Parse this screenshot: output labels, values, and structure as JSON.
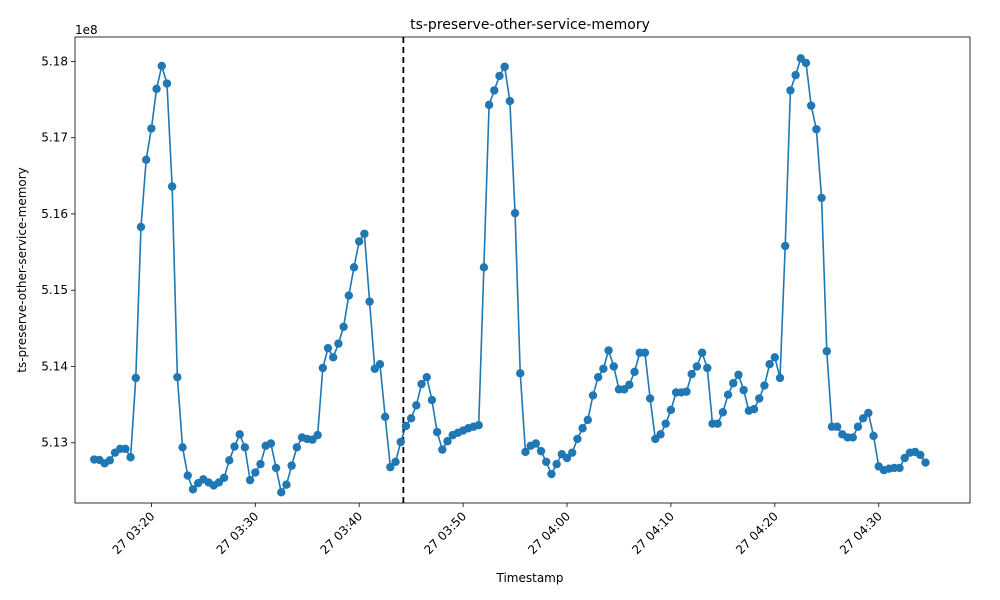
{
  "chart_data": {
    "type": "line",
    "title": "ts-preserve-other-service-memory",
    "xlabel": "Timestamp",
    "ylabel": "ts-preserve-other-service-memory",
    "y_offset_label": "1e8",
    "x_ticks": [
      "27 03:20",
      "27 03:30",
      "27 03:40",
      "27 03:50",
      "27 04:00",
      "27 04:10",
      "27 04:20",
      "27 04:30"
    ],
    "y_ticks": [
      "5.13",
      "5.14",
      "5.15",
      "5.16",
      "5.17",
      "5.18"
    ],
    "ylim": [
      5.1221,
      5.1832
    ],
    "xlim": [
      "03:12:39",
      "04:38:47"
    ],
    "vline": {
      "x": "03:44:15",
      "style": "dashed",
      "color": "#000000"
    },
    "line_color": "#1f77b4",
    "marker": "circle",
    "grid": false,
    "series": [
      {
        "x": [
          "03:14:30",
          "03:15:00",
          "03:15:30",
          "03:16:00",
          "03:16:30",
          "03:17:00",
          "03:17:30",
          "03:18:00",
          "03:18:30",
          "03:19:00",
          "03:19:30",
          "03:20:00",
          "03:20:30",
          "03:21:00",
          "03:21:30",
          "03:22:00",
          "03:22:30",
          "03:23:00",
          "03:23:30",
          "03:24:00",
          "03:24:30",
          "03:25:00",
          "03:25:30",
          "03:26:00",
          "03:26:30",
          "03:27:00",
          "03:27:30",
          "03:28:00",
          "03:28:30",
          "03:29:00",
          "03:29:30",
          "03:30:00",
          "03:30:30",
          "03:31:00",
          "03:31:30",
          "03:32:00",
          "03:32:30",
          "03:33:00",
          "03:33:30",
          "03:34:00",
          "03:34:30",
          "03:35:00",
          "03:35:30",
          "03:36:00",
          "03:36:30",
          "03:37:00",
          "03:37:30",
          "03:38:00",
          "03:38:30",
          "03:39:00",
          "03:39:30",
          "03:40:00",
          "03:40:30",
          "03:41:00",
          "03:41:30",
          "03:42:00",
          "03:42:30",
          "03:43:00",
          "03:43:30",
          "03:44:00",
          "03:44:30",
          "03:45:00",
          "03:45:30",
          "03:46:00",
          "03:46:30",
          "03:47:00",
          "03:47:30",
          "03:48:00",
          "03:48:30",
          "03:49:00",
          "03:49:30",
          "03:50:00",
          "03:50:30",
          "03:51:00",
          "03:51:30",
          "03:52:00",
          "03:52:30",
          "03:53:00",
          "03:53:30",
          "03:54:00",
          "03:54:30",
          "03:55:00",
          "03:55:30",
          "03:56:00",
          "03:56:30",
          "03:57:00",
          "03:57:30",
          "03:58:00",
          "03:58:30",
          "03:59:00",
          "03:59:30",
          "04:00:00",
          "04:00:30",
          "04:01:00",
          "04:01:30",
          "04:02:00",
          "04:02:30",
          "04:03:00",
          "04:03:30",
          "04:04:00",
          "04:04:30",
          "04:05:00",
          "04:05:30",
          "04:06:00",
          "04:06:30",
          "04:07:00",
          "04:07:30",
          "04:08:00",
          "04:08:30",
          "04:09:00",
          "04:09:30",
          "04:10:00",
          "04:10:30",
          "04:11:00",
          "04:11:30",
          "04:12:00",
          "04:12:30",
          "04:13:00",
          "04:13:30",
          "04:14:00",
          "04:14:30",
          "04:15:00",
          "04:15:30",
          "04:16:00",
          "04:16:30",
          "04:17:00",
          "04:17:30",
          "04:18:00",
          "04:18:30",
          "04:19:00",
          "04:19:30",
          "04:20:00",
          "04:20:30",
          "04:21:00",
          "04:21:30",
          "04:22:00",
          "04:22:30",
          "04:23:00",
          "04:23:30",
          "04:24:00",
          "04:24:30",
          "04:25:00",
          "04:25:30",
          "04:26:00",
          "04:26:30",
          "04:27:00",
          "04:27:30",
          "04:28:00",
          "04:28:30",
          "04:29:00",
          "04:29:30",
          "04:30:00",
          "04:30:30",
          "04:31:00",
          "04:31:30",
          "04:32:00",
          "04:32:30",
          "04:33:00",
          "04:33:30",
          "04:34:00",
          "04:34:30"
        ],
        "values": [
          5.1278,
          5.12775,
          5.1273,
          5.1277,
          5.1287,
          5.1292,
          5.1292,
          5.1281,
          5.1385,
          5.1583,
          5.1671,
          5.1712,
          5.1764,
          5.1794,
          5.1771,
          5.1636,
          5.1386,
          5.1294,
          5.1257,
          5.1239,
          5.1247,
          5.1252,
          5.1248,
          5.1244,
          5.1248,
          5.1254,
          5.1277,
          5.1295,
          5.1311,
          5.1294,
          5.1251,
          5.1261,
          5.1272,
          5.1296,
          5.1299,
          5.1267,
          5.1235,
          5.1245,
          5.127,
          5.1294,
          5.1307,
          5.1305,
          5.1304,
          5.131,
          5.1398,
          5.1424,
          5.1412,
          5.143,
          5.1452,
          5.1493,
          5.153,
          5.1564,
          5.1574,
          5.1485,
          5.1397,
          5.1403,
          5.1334,
          5.1268,
          5.1275,
          5.1301,
          5.1322,
          5.1332,
          5.1349,
          5.1377,
          5.1386,
          5.1356,
          5.1314,
          5.1291,
          5.1302,
          5.131,
          5.1313,
          5.1316,
          5.1319,
          5.1321,
          5.1323,
          5.153,
          5.1743,
          5.1762,
          5.1781,
          5.1793,
          5.1748,
          5.1601,
          5.1391,
          5.1288,
          5.1296,
          5.1299,
          5.1289,
          5.1275,
          5.1259,
          5.1272,
          5.1285,
          5.128,
          5.1287,
          5.1305,
          5.1319,
          5.133,
          5.1362,
          5.1386,
          5.1397,
          5.1421,
          5.14,
          5.137,
          5.137,
          5.1376,
          5.1393,
          5.1418,
          5.1418,
          5.1358,
          5.1305,
          5.1311,
          5.1325,
          5.1343,
          5.1366,
          5.1366,
          5.1367,
          5.139,
          5.14,
          5.1418,
          5.1398,
          5.1325,
          5.1325,
          5.134,
          5.1363,
          5.1378,
          5.1389,
          5.1369,
          5.1342,
          5.1344,
          5.1358,
          5.1375,
          5.1403,
          5.1412,
          5.1385,
          5.1558,
          5.1762,
          5.1782,
          5.1804,
          5.1798,
          5.1742,
          5.1711,
          5.1621,
          5.142,
          5.1321,
          5.1321,
          5.1311,
          5.1307,
          5.1307,
          5.1321,
          5.1332,
          5.1339,
          5.1309,
          5.1269,
          5.1264,
          5.1266,
          5.1267,
          5.1267,
          5.128,
          5.1287,
          5.1288,
          5.1284,
          5.1274
        ]
      }
    ]
  }
}
